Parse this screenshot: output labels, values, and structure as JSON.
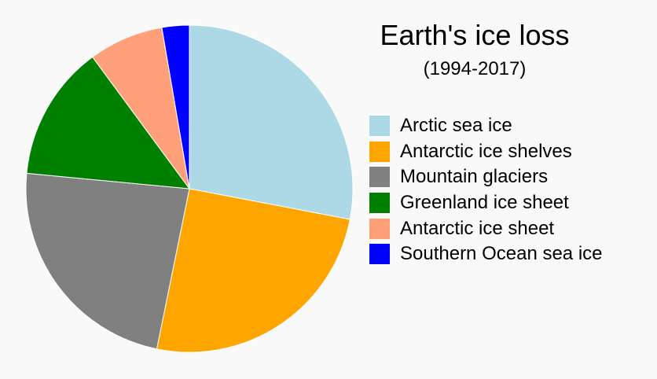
{
  "chart_data": {
    "type": "pie",
    "title": "Earth's ice loss",
    "subtitle": "(1994-2017)",
    "legend_position": "right",
    "start_angle_deg": 0,
    "direction": "clockwise",
    "slices": [
      {
        "label": "Arctic sea ice",
        "value": 28.0,
        "color": "#add8e6"
      },
      {
        "label": "Antarctic ice shelves",
        "value": 25.2,
        "color": "#ffa500"
      },
      {
        "label": "Mountain glaciers",
        "value": 23.3,
        "color": "#808080"
      },
      {
        "label": "Greenland ice sheet",
        "value": 13.4,
        "color": "#008000"
      },
      {
        "label": "Antarctic ice sheet",
        "value": 7.4,
        "color": "#ffa07a"
      },
      {
        "label": "Southern Ocean sea ice",
        "value": 2.7,
        "color": "#0000ff"
      }
    ]
  }
}
